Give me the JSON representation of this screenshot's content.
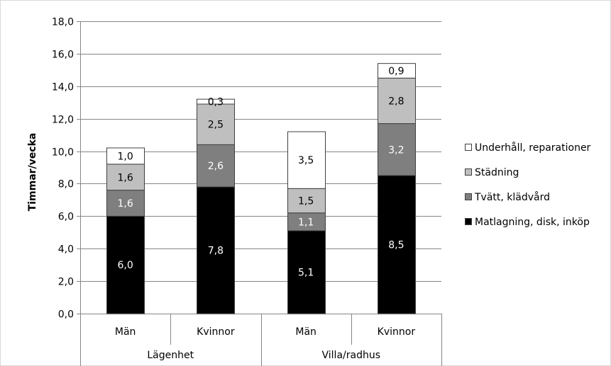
{
  "chart_data": {
    "type": "bar",
    "stacked": true,
    "ylabel": "Timmar/vecka",
    "ylim": [
      0,
      18
    ],
    "y_ticks": [
      "0,0",
      "2,0",
      "4,0",
      "6,0",
      "8,0",
      "10,0",
      "12,0",
      "14,0",
      "16,0",
      "18,0"
    ],
    "y_tick_values": [
      0,
      2,
      4,
      6,
      8,
      10,
      12,
      14,
      16,
      18
    ],
    "grid": true,
    "legend_position": "right",
    "categories": [
      "Män",
      "Kvinnor",
      "Män",
      "Kvinnor"
    ],
    "groups": [
      {
        "label": "Lägenhet",
        "categories": [
          0,
          1
        ]
      },
      {
        "label": "Villa/radhus",
        "categories": [
          2,
          3
        ]
      }
    ],
    "series": [
      {
        "name": "Matlagning, disk, inköp",
        "color": "#000000",
        "label_color": "#ffffff",
        "values": [
          6.0,
          7.8,
          5.1,
          8.5
        ],
        "labels": [
          "6,0",
          "7,8",
          "5,1",
          "8,5"
        ]
      },
      {
        "name": "Tvätt, klädvård",
        "color": "#7f7f7f",
        "label_color": "#ffffff",
        "values": [
          1.6,
          2.6,
          1.1,
          3.2
        ],
        "labels": [
          "1,6",
          "2,6",
          "1,1",
          "3,2"
        ]
      },
      {
        "name": "Städning",
        "color": "#bfbfbf",
        "label_color": "#000000",
        "values": [
          1.6,
          2.5,
          1.5,
          2.8
        ],
        "labels": [
          "1,6",
          "2,5",
          "1,5",
          "2,8"
        ]
      },
      {
        "name": "Underhåll, reparationer",
        "color": "#ffffff",
        "label_color": "#000000",
        "values": [
          1.0,
          0.3,
          3.5,
          0.9
        ],
        "labels": [
          "1,0",
          "0,3",
          "3,5",
          "0,9"
        ]
      }
    ],
    "legend_order": [
      3,
      2,
      1,
      0
    ]
  }
}
